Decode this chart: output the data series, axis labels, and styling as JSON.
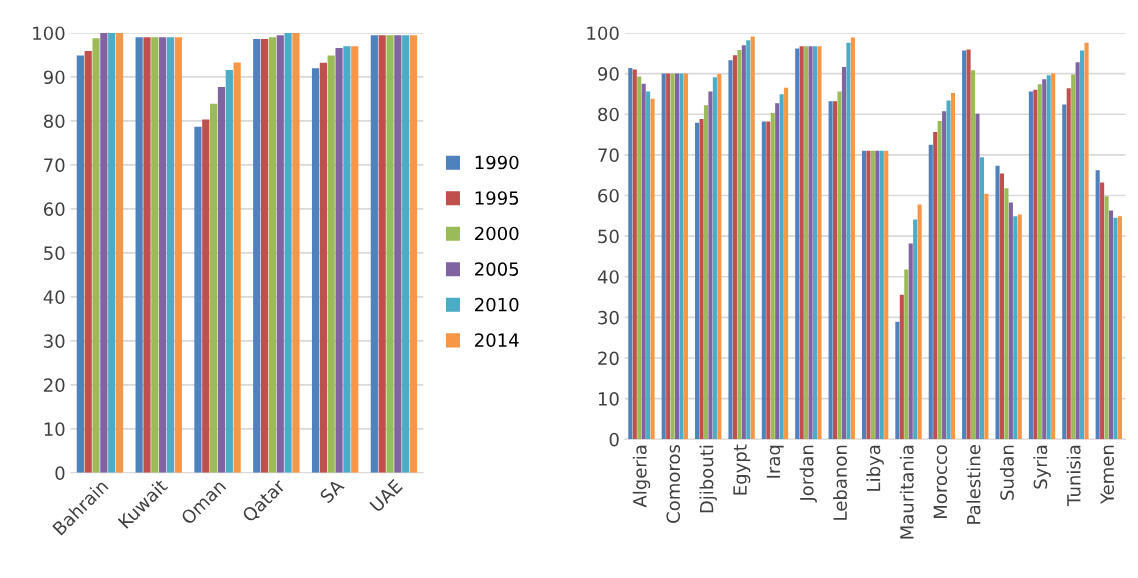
{
  "chart_data": [
    {
      "type": "bar",
      "categories": [
        "Bahrain",
        "Kuwait",
        "Oman",
        "Qatar",
        "SA",
        "UAE"
      ],
      "ylim": [
        0,
        100
      ],
      "yticks": [
        0,
        10,
        20,
        30,
        40,
        50,
        60,
        70,
        80,
        90,
        100
      ],
      "grid": "y",
      "legend": "right",
      "series": [
        {
          "name": "1990",
          "color": "#4f81bd",
          "values": [
            94.9,
            99.0,
            78.7,
            98.6,
            92.0,
            99.5
          ]
        },
        {
          "name": "1995",
          "color": "#c0504d",
          "values": [
            95.9,
            99.0,
            80.3,
            98.6,
            93.2,
            99.5
          ]
        },
        {
          "name": "2000",
          "color": "#9bbb59",
          "values": [
            98.8,
            99.0,
            83.9,
            99.0,
            94.9,
            99.5
          ]
        },
        {
          "name": "2005",
          "color": "#8064a2",
          "values": [
            100,
            99.0,
            87.7,
            99.5,
            96.6,
            99.5
          ]
        },
        {
          "name": "2010",
          "color": "#4bacc6",
          "values": [
            100,
            99.0,
            91.6,
            100,
            97.0,
            99.5
          ]
        },
        {
          "name": "2014",
          "color": "#f79646",
          "values": [
            100,
            99.0,
            93.3,
            100,
            97.0,
            99.5
          ]
        }
      ]
    },
    {
      "type": "bar",
      "categories": [
        "Algeria",
        "Comoros",
        "Djibouti",
        "Egypt",
        "Iraq",
        "Jordan",
        "Lebanon",
        "Libya",
        "Mauritania",
        "Morocco",
        "Palestine",
        "Sudan",
        "Syria",
        "Tunisia",
        "Yemen"
      ],
      "ylim": [
        0,
        100
      ],
      "yticks": [
        0,
        10,
        20,
        30,
        40,
        50,
        60,
        70,
        80,
        90,
        100
      ],
      "grid": "y",
      "legend": false,
      "series": [
        {
          "color": "#4f81bd",
          "values": [
            91.4,
            90.0,
            77.9,
            93.3,
            78.2,
            96.2,
            83.2,
            71.0,
            28.9,
            72.5,
            95.7,
            67.3,
            85.6,
            82.4,
            66.2
          ]
        },
        {
          "color": "#c0504d",
          "values": [
            91.0,
            90.0,
            78.8,
            94.5,
            78.2,
            96.7,
            83.2,
            71.0,
            35.6,
            75.6,
            95.9,
            65.4,
            86.0,
            86.4,
            63.2
          ]
        },
        {
          "color": "#9bbb59",
          "values": [
            89.3,
            90.0,
            82.2,
            95.8,
            80.3,
            96.7,
            85.6,
            71.0,
            41.8,
            78.3,
            90.8,
            61.8,
            87.4,
            89.8,
            59.8
          ]
        },
        {
          "color": "#8064a2",
          "values": [
            87.5,
            90.0,
            85.6,
            97.0,
            82.7,
            96.7,
            91.6,
            71.0,
            48.2,
            80.7,
            80.1,
            58.3,
            88.6,
            92.8,
            56.3
          ]
        },
        {
          "color": "#4bacc6",
          "values": [
            85.6,
            90.0,
            89.1,
            98.2,
            84.9,
            96.7,
            97.6,
            71.0,
            54.1,
            83.4,
            69.4,
            54.9,
            89.6,
            95.7,
            54.5
          ]
        },
        {
          "color": "#f79646",
          "values": [
            83.8,
            90.0,
            89.9,
            99.1,
            86.5,
            96.7,
            98.9,
            71.0,
            57.8,
            85.2,
            60.4,
            55.3,
            90.0,
            97.6,
            54.9
          ]
        }
      ]
    }
  ]
}
